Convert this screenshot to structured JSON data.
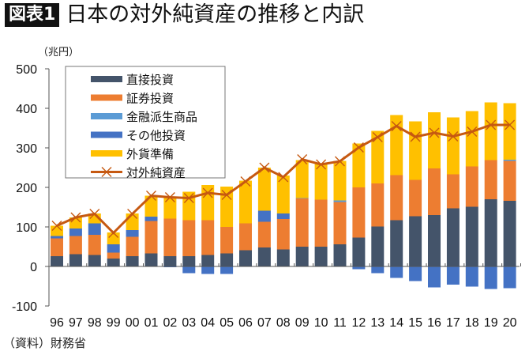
{
  "header": {
    "badge": "図表1",
    "title": "日本の対外純資産の推移と内訳"
  },
  "unit_label": "（兆円）",
  "source": "（資料）財務省",
  "chart_data": {
    "type": "bar",
    "stacked": true,
    "title": "日本の対外純資産の推移と内訳",
    "ylabel": "（兆円）",
    "ylim": [
      -100,
      500
    ],
    "yticks": [
      -100,
      0,
      100,
      200,
      300,
      400,
      500
    ],
    "grid": false,
    "legend_position": "top-left",
    "categories": [
      "96",
      "97",
      "98",
      "99",
      "00",
      "01",
      "02",
      "03",
      "04",
      "05",
      "06",
      "07",
      "08",
      "09",
      "10",
      "11",
      "12",
      "13",
      "14",
      "15",
      "16",
      "17",
      "18",
      "19",
      "20"
    ],
    "series": [
      {
        "name": "直接投資",
        "color": "#44546A",
        "values": [
          26,
          31,
          29,
          20,
          26,
          33,
          26,
          26,
          29,
          33,
          41,
          48,
          43,
          50,
          50,
          56,
          73,
          101,
          117,
          127,
          130,
          147,
          151,
          170,
          166
        ]
      },
      {
        "name": "証券投資",
        "color": "#ED7D31",
        "values": [
          45,
          46,
          51,
          15,
          49,
          82,
          95,
          91,
          88,
          67,
          68,
          65,
          77,
          122,
          119,
          107,
          127,
          109,
          114,
          92,
          118,
          86,
          102,
          99,
          101
        ]
      },
      {
        "name": "金融派生商品",
        "color": "#5B9BD5",
        "values": [
          0,
          0,
          0,
          0,
          0,
          0,
          0,
          0,
          0,
          0,
          0,
          0,
          0,
          1,
          0,
          4,
          0,
          0,
          0,
          0,
          0,
          0,
          0,
          0,
          3
        ]
      },
      {
        "name": "その他投資",
        "color": "#4472C4",
        "values": [
          6,
          19,
          29,
          21,
          17,
          11,
          -2,
          -17,
          -19,
          -19,
          0,
          28,
          14,
          0,
          0,
          0,
          -7,
          -17,
          -29,
          -37,
          -53,
          -46,
          -51,
          -57,
          -55
        ]
      },
      {
        "name": "外貨準備",
        "color": "#FFC000",
        "values": [
          26,
          28,
          25,
          30,
          42,
          53,
          54,
          72,
          89,
          102,
          108,
          109,
          96,
          96,
          90,
          100,
          111,
          133,
          152,
          148,
          142,
          144,
          140,
          146,
          143
        ]
      },
      {
        "name": "対外純資産",
        "type": "line",
        "color": "#C65911",
        "marker": "x",
        "values": [
          103,
          124,
          133,
          85,
          133,
          179,
          175,
          173,
          186,
          181,
          215,
          250,
          226,
          271,
          258,
          266,
          301,
          327,
          355,
          328,
          338,
          329,
          341,
          358,
          358
        ]
      }
    ]
  }
}
